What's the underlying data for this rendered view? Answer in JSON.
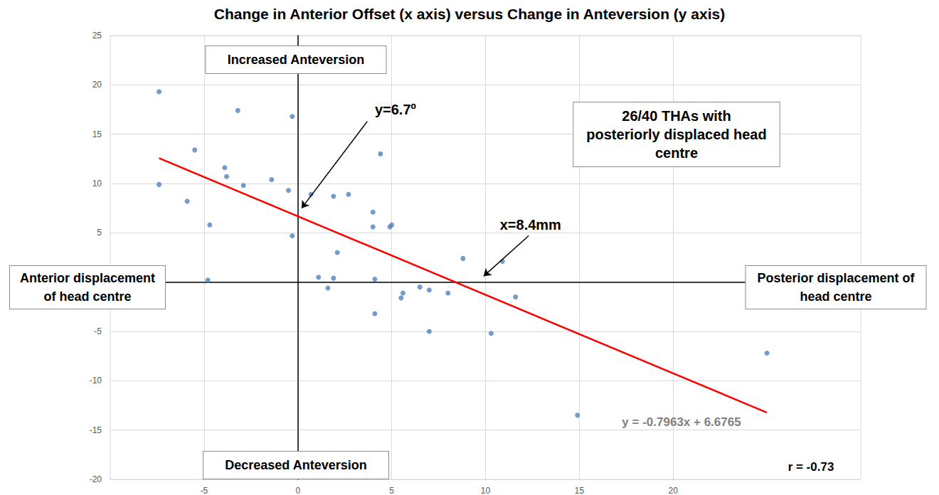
{
  "chart_data": {
    "type": "scatter",
    "title": "Change in Anterior Offset (x axis) versus Change in Anteversion (y axis)",
    "x": [
      -7.4,
      -7.4,
      -5.9,
      -5.5,
      -4.7,
      -4.8,
      -3.9,
      -3.8,
      -3.2,
      -2.9,
      -1.4,
      -0.5,
      -0.3,
      -0.3,
      0.7,
      1.1,
      1.6,
      1.9,
      1.9,
      2.1,
      2.7,
      4.0,
      4.0,
      4.1,
      4.1,
      4.4,
      4.9,
      5.0,
      5.5,
      5.6,
      6.5,
      7.0,
      7.0,
      8.0,
      8.8,
      10.3,
      10.9,
      11.6,
      14.9,
      25.0
    ],
    "values": [
      19.3,
      9.9,
      8.2,
      13.4,
      5.8,
      0.2,
      11.6,
      10.7,
      17.4,
      9.8,
      10.4,
      9.3,
      16.8,
      4.7,
      8.9,
      0.5,
      -0.6,
      0.4,
      8.7,
      3.0,
      8.9,
      7.1,
      5.6,
      0.3,
      -3.2,
      13.0,
      5.6,
      5.8,
      -1.6,
      -1.1,
      -0.5,
      -0.8,
      -5.0,
      -1.1,
      2.4,
      -5.2,
      2.1,
      -1.5,
      -13.5,
      -7.2
    ],
    "color": "#4f81bd",
    "marker": "circle",
    "xlim": [
      -10,
      30
    ],
    "xticks": [
      -5,
      0,
      5,
      10,
      15,
      20
    ],
    "ylim": [
      -20,
      25
    ],
    "yticks": [
      -20,
      -15,
      -10,
      -5,
      0,
      5,
      10,
      15,
      20,
      25
    ],
    "grid": true,
    "fit": {
      "slope": -0.7963,
      "intercept": 6.6765,
      "x_span": [
        -7.4,
        25.0
      ],
      "color": "#ff0000",
      "label": "y = -0.7963x + 6.6765"
    },
    "correlation_label": "r = -0.73",
    "annotations": [
      {
        "text": "y=6.7º",
        "text_at": [
          5.2,
          17.5
        ],
        "arrow_from": [
          3.7,
          16.3
        ],
        "arrow_to": [
          0.2,
          7.5
        ]
      },
      {
        "text": "x=8.4mm",
        "text_at": [
          12.4,
          5.8
        ],
        "arrow_from": [
          12.3,
          4.7
        ],
        "arrow_to": [
          9.9,
          0.6
        ]
      }
    ],
    "boxes": {
      "top": "Increased Anteversion",
      "bottom": "Decreased Anteversion",
      "left": "Anterior displacement\nof head centre",
      "right": "Posterior displacement of\nhead centre",
      "note": "26/40 THAs with\nposteriorly displaced head\ncentre"
    }
  }
}
